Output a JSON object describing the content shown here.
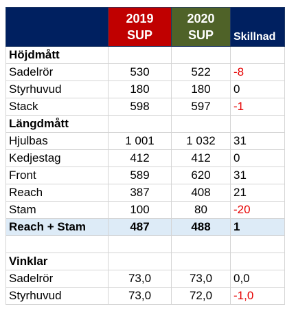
{
  "header": {
    "col2019_year": "2019",
    "col2019_model": "SUP",
    "col2020_year": "2020",
    "col2020_model": "SUP",
    "diff_label": "Skillnad"
  },
  "sections": {
    "height": "Höjdmått",
    "length": "Längdmått",
    "angles": "Vinklar"
  },
  "rows": [
    {
      "label": "Sadelrör",
      "v2019": "530",
      "v2020": "522",
      "diff": "-8"
    },
    {
      "label": "Styrhuvud",
      "v2019": "180",
      "v2020": "180",
      "diff": "0"
    },
    {
      "label": "Stack",
      "v2019": "598",
      "v2020": "597",
      "diff": "-1"
    },
    {
      "label": "Hjulbas",
      "v2019": "1 001",
      "v2020": "1 032",
      "diff": "31"
    },
    {
      "label": "Kedjestag",
      "v2019": "412",
      "v2020": "412",
      "diff": "0"
    },
    {
      "label": "Front",
      "v2019": "589",
      "v2020": "620",
      "diff": "31"
    },
    {
      "label": "Reach",
      "v2019": "387",
      "v2020": "408",
      "diff": "21"
    },
    {
      "label": "Stam",
      "v2019": "100",
      "v2020": "80",
      "diff": "-20"
    },
    {
      "label": "Reach + Stam",
      "v2019": "487",
      "v2020": "488",
      "diff": "1"
    },
    {
      "label": "Sadelrör",
      "v2019": "73,0",
      "v2020": "73,0",
      "diff": "0,0"
    },
    {
      "label": "Styrhuvud",
      "v2019": "73,0",
      "v2020": "72,0",
      "diff": "-1,0"
    }
  ],
  "colors": {
    "header_navy": "#002060",
    "header_red": "#c00000",
    "header_olive": "#4f6228",
    "negative": "#e60000",
    "total_row": "#ddebf7"
  }
}
